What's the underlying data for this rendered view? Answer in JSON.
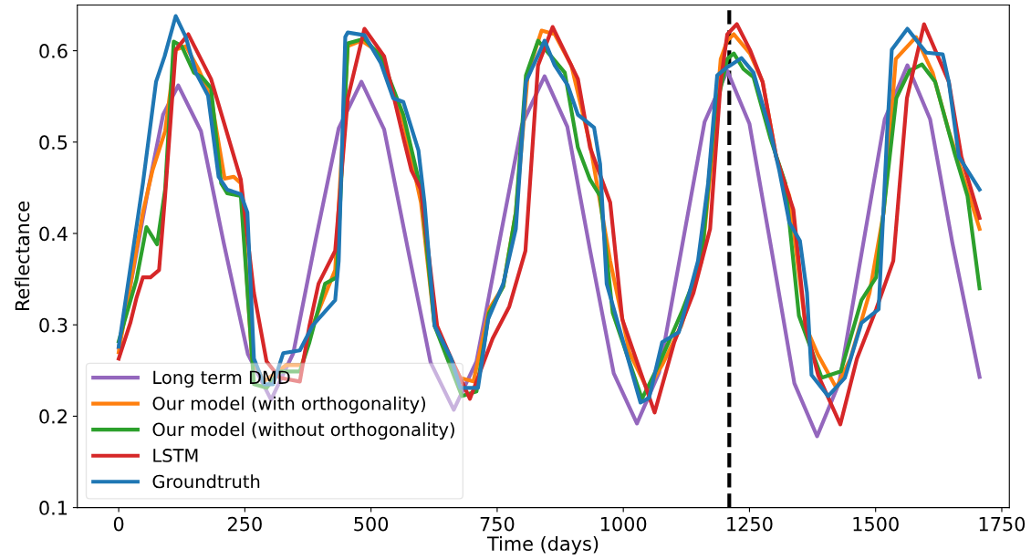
{
  "chart_data": {
    "type": "line",
    "xlabel": "Time (days)",
    "ylabel": "Reflectance",
    "xlim": [
      -82,
      1765
    ],
    "ylim": [
      0.1,
      0.65
    ],
    "xticks": [
      0,
      250,
      500,
      750,
      1000,
      1250,
      1500,
      1750
    ],
    "yticks": [
      0.1,
      0.2,
      0.3,
      0.4,
      0.5,
      0.6
    ],
    "grid": false,
    "legend": "bottom left",
    "marker": "none",
    "line_style": "solid",
    "ref_lines": [
      {
        "axis": "x",
        "value": 1210,
        "color": "#000000",
        "line_style": "dashed"
      }
    ],
    "series": [
      {
        "name": "Long term DMD",
        "color": "#9467bd",
        "x": [
          0,
          29,
          59,
          88,
          118,
          163,
          208,
          256,
          302,
          346,
          390,
          436,
          481,
          526,
          572,
          618,
          664,
          709,
          754,
          799,
          844,
          889,
          934,
          981,
          1027,
          1071,
          1116,
          1161,
          1206,
          1250,
          1295,
          1339,
          1384,
          1428,
          1473,
          1518,
          1563,
          1608,
          1652,
          1706
        ],
        "values": [
          0.275,
          0.36,
          0.45,
          0.53,
          0.562,
          0.512,
          0.39,
          0.268,
          0.218,
          0.269,
          0.392,
          0.515,
          0.566,
          0.514,
          0.386,
          0.259,
          0.207,
          0.26,
          0.39,
          0.519,
          0.572,
          0.517,
          0.382,
          0.247,
          0.192,
          0.248,
          0.385,
          0.522,
          0.578,
          0.52,
          0.378,
          0.236,
          0.178,
          0.237,
          0.381,
          0.525,
          0.584,
          0.525,
          0.39,
          0.243
        ]
      },
      {
        "name": "Our model (with orthogonality)",
        "color": "#ff7f0e",
        "x": [
          0,
          48,
          67,
          92,
          113,
          133,
          158,
          183,
          210,
          228,
          242,
          264,
          288,
          332,
          363,
          384,
          429,
          454,
          481,
          519,
          564,
          599,
          626,
          677,
          703,
          734,
          762,
          787,
          811,
          838,
          864,
          897,
          934,
          974,
          1012,
          1048,
          1077,
          1115,
          1155,
          1181,
          1193,
          1206,
          1219,
          1251,
          1276,
          1303,
          1329,
          1361,
          1386,
          1422,
          1450,
          1488,
          1516,
          1540,
          1580,
          1613,
          1645,
          1682,
          1706
        ],
        "values": [
          0.27,
          0.423,
          0.469,
          0.512,
          0.601,
          0.605,
          0.58,
          0.548,
          0.46,
          0.462,
          0.455,
          0.263,
          0.238,
          0.256,
          0.256,
          0.299,
          0.36,
          0.605,
          0.611,
          0.597,
          0.523,
          0.434,
          0.299,
          0.242,
          0.238,
          0.317,
          0.342,
          0.423,
          0.576,
          0.622,
          0.618,
          0.584,
          0.498,
          0.37,
          0.27,
          0.229,
          0.256,
          0.299,
          0.37,
          0.512,
          0.591,
          0.611,
          0.618,
          0.597,
          0.566,
          0.484,
          0.441,
          0.299,
          0.267,
          0.231,
          0.263,
          0.335,
          0.423,
          0.591,
          0.615,
          0.576,
          0.512,
          0.448,
          0.405
        ]
      },
      {
        "name": "Our model (without orthogonality)",
        "color": "#2ca02c",
        "x": [
          0,
          35,
          55,
          76,
          92,
          109,
          125,
          149,
          165,
          183,
          203,
          215,
          242,
          268,
          293,
          319,
          359,
          378,
          409,
          432,
          454,
          487,
          519,
          564,
          599,
          626,
          680,
          709,
          734,
          762,
          787,
          807,
          831,
          884,
          910,
          934,
          954,
          979,
          1037,
          1070,
          1115,
          1155,
          1181,
          1206,
          1219,
          1238,
          1258,
          1291,
          1321,
          1348,
          1393,
          1431,
          1472,
          1501,
          1541,
          1567,
          1592,
          1618,
          1657,
          1682,
          1706
        ],
        "values": [
          0.282,
          0.349,
          0.407,
          0.388,
          0.448,
          0.61,
          0.605,
          0.576,
          0.571,
          0.559,
          0.455,
          0.444,
          0.441,
          0.235,
          0.231,
          0.249,
          0.249,
          0.281,
          0.345,
          0.352,
          0.608,
          0.613,
          0.594,
          0.53,
          0.448,
          0.299,
          0.222,
          0.227,
          0.313,
          0.342,
          0.423,
          0.573,
          0.611,
          0.576,
          0.494,
          0.459,
          0.441,
          0.313,
          0.219,
          0.256,
          0.313,
          0.37,
          0.53,
          0.591,
          0.597,
          0.58,
          0.571,
          0.505,
          0.455,
          0.31,
          0.242,
          0.249,
          0.327,
          0.352,
          0.548,
          0.578,
          0.585,
          0.566,
          0.487,
          0.441,
          0.34
        ]
      },
      {
        "name": "LSTM",
        "color": "#d62728",
        "x": [
          0,
          23,
          35,
          48,
          63,
          80,
          92,
          113,
          138,
          183,
          242,
          268,
          293,
          319,
          359,
          378,
          396,
          429,
          454,
          487,
          526,
          564,
          580,
          599,
          631,
          659,
          696,
          741,
          774,
          806,
          831,
          860,
          910,
          934,
          974,
          998,
          1062,
          1101,
          1139,
          1172,
          1193,
          1206,
          1225,
          1251,
          1276,
          1303,
          1337,
          1361,
          1386,
          1430,
          1463,
          1501,
          1535,
          1562,
          1596,
          1645,
          1670,
          1706
        ],
        "values": [
          0.263,
          0.302,
          0.329,
          0.352,
          0.352,
          0.36,
          0.441,
          0.601,
          0.618,
          0.569,
          0.459,
          0.335,
          0.26,
          0.242,
          0.238,
          0.299,
          0.345,
          0.381,
          0.548,
          0.624,
          0.594,
          0.505,
          0.469,
          0.448,
          0.299,
          0.263,
          0.219,
          0.285,
          0.32,
          0.381,
          0.584,
          0.626,
          0.569,
          0.494,
          0.434,
          0.306,
          0.204,
          0.281,
          0.335,
          0.405,
          0.566,
          0.618,
          0.629,
          0.601,
          0.566,
          0.484,
          0.426,
          0.299,
          0.245,
          0.191,
          0.263,
          0.317,
          0.37,
          0.548,
          0.629,
          0.566,
          0.484,
          0.417
        ]
      },
      {
        "name": "Groundtruth",
        "color": "#1f77b4",
        "x": [
          0,
          48,
          74,
          91,
          113,
          133,
          153,
          177,
          198,
          215,
          242,
          255,
          268,
          288,
          306,
          326,
          359,
          384,
          429,
          436,
          449,
          454,
          487,
          519,
          544,
          564,
          594,
          606,
          626,
          659,
          677,
          712,
          732,
          762,
          787,
          807,
          844,
          864,
          890,
          910,
          942,
          954,
          967,
          1000,
          1034,
          1051,
          1077,
          1110,
          1148,
          1168,
          1186,
          1206,
          1212,
          1234,
          1258,
          1291,
          1309,
          1329,
          1350,
          1364,
          1373,
          1406,
          1439,
          1472,
          1506,
          1523,
          1532,
          1563,
          1600,
          1633,
          1645,
          1665,
          1706
        ],
        "values": [
          0.276,
          0.455,
          0.566,
          0.594,
          0.638,
          0.615,
          0.576,
          0.551,
          0.462,
          0.448,
          0.443,
          0.423,
          0.263,
          0.235,
          0.235,
          0.269,
          0.272,
          0.299,
          0.327,
          0.37,
          0.615,
          0.62,
          0.617,
          0.587,
          0.548,
          0.544,
          0.491,
          0.434,
          0.299,
          0.263,
          0.231,
          0.231,
          0.306,
          0.345,
          0.405,
          0.566,
          0.611,
          0.584,
          0.562,
          0.53,
          0.516,
          0.476,
          0.345,
          0.281,
          0.215,
          0.22,
          0.281,
          0.292,
          0.37,
          0.455,
          0.573,
          0.582,
          0.584,
          0.592,
          0.576,
          0.512,
          0.469,
          0.412,
          0.392,
          0.335,
          0.245,
          0.222,
          0.242,
          0.302,
          0.317,
          0.512,
          0.601,
          0.624,
          0.598,
          0.596,
          0.566,
          0.484,
          0.448
        ]
      }
    ]
  }
}
